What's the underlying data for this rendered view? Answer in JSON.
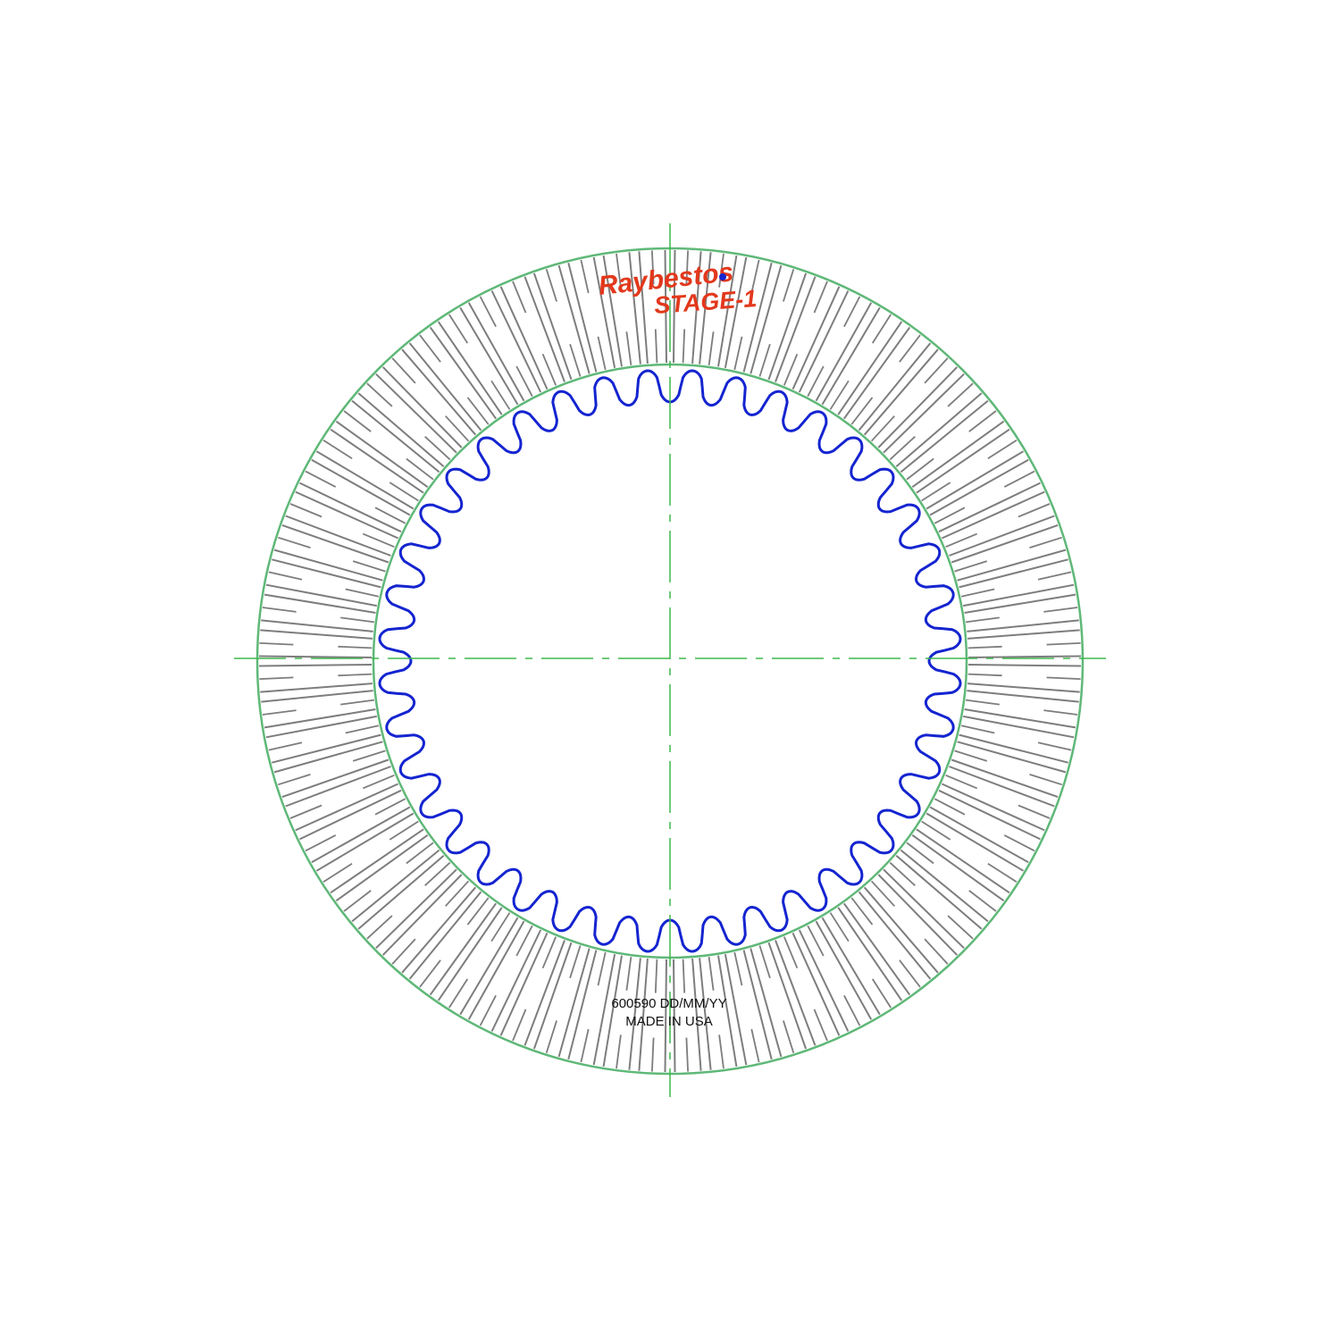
{
  "part": {
    "number_date_line": "600590 DD/MM/YY",
    "origin_line": "MADE IN USA"
  },
  "logo": {
    "script_text": "Raybestos",
    "grade_text": "STAGE-1"
  },
  "disc": {
    "groove_count": 72,
    "internal_spline_tooth_count": 40
  },
  "colors": {
    "outline": "#5fb878",
    "centerline": "#3fb84f",
    "groove": "#7d7d7d",
    "spline": "#1424d0",
    "logo": "#e2381c",
    "logo_dot": "#1424d0",
    "text": "#111111"
  }
}
